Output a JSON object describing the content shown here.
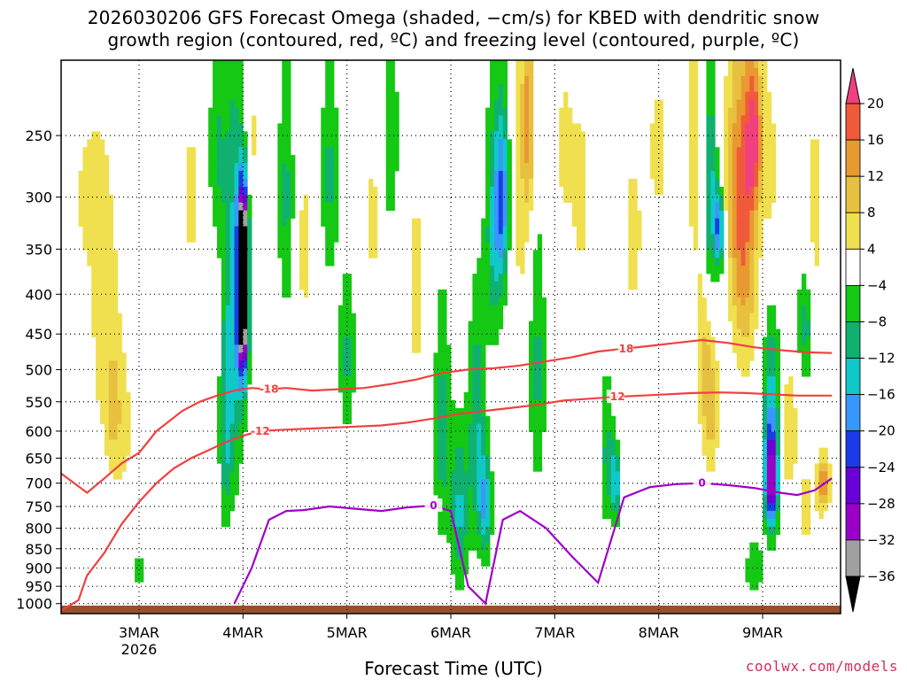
{
  "title_line1": "2026030206 GFS Forecast Omega (shaded, −cm/s) for KBED with dendritic snow",
  "title_line2": "growth region (contoured, red, ºC) and freezing level (contoured, purple, ºC)",
  "xlabel": "Forecast Time (UTC)",
  "credit": "coolwx.com/models",
  "chart_data": {
    "type": "heatmap",
    "title": "2026030206 GFS Forecast Omega (shaded, −cm/s) for KBED with dendritic snow growth region (contoured, red, ºC) and freezing level (contoured, purple, ºC)",
    "xlabel": "Forecast Time (UTC)",
    "ylabel": "",
    "x_ticks": [
      "3MAR",
      "4MAR",
      "5MAR",
      "6MAR",
      "7MAR",
      "8MAR",
      "9MAR"
    ],
    "x_tick_hours": [
      18,
      42,
      66,
      90,
      114,
      138,
      162
    ],
    "x_year_label": "2026",
    "xlim_hours": [
      0,
      180
    ],
    "y_ticks": [
      250,
      300,
      350,
      400,
      450,
      500,
      550,
      600,
      650,
      700,
      750,
      800,
      850,
      900,
      950,
      1000
    ],
    "ylim": [
      200,
      1030
    ],
    "y_scale": "log",
    "grid": true,
    "colorbar": {
      "levels": [
        -36,
        -32,
        -28,
        -24,
        -20,
        -16,
        -12,
        -8,
        -4,
        4,
        8,
        12,
        16,
        20
      ],
      "colors": [
        "#000000",
        "#a0a0a0",
        "#9a00c8",
        "#6a00d8",
        "#1a3ce8",
        "#3a96ff",
        "#10c8c8",
        "#10b070",
        "#14c814",
        "#ffffff",
        "#f0e050",
        "#e8c040",
        "#e89a30",
        "#f05a3a",
        "#f04080"
      ]
    },
    "series": [
      {
        "name": "-18",
        "color": "#f04040",
        "x": [
          0,
          6,
          10,
          14,
          18,
          22,
          28,
          32,
          36,
          40,
          44,
          48,
          52,
          58,
          64,
          70,
          76,
          82,
          88,
          94,
          100,
          106,
          112,
          118,
          124,
          130,
          136,
          142,
          148,
          154,
          160,
          166,
          172,
          178
        ],
        "y": [
          680,
          720,
          690,
          660,
          640,
          600,
          565,
          550,
          540,
          532,
          528,
          530,
          528,
          532,
          530,
          528,
          522,
          515,
          505,
          500,
          498,
          494,
          488,
          482,
          474,
          470,
          466,
          462,
          458,
          462,
          468,
          472,
          475,
          476
        ]
      },
      {
        "name": "-12",
        "color": "#f04040",
        "x": [
          0,
          4,
          6,
          10,
          14,
          18,
          22,
          26,
          30,
          34,
          38,
          42,
          46,
          50,
          56,
          62,
          68,
          74,
          80,
          86,
          92,
          98,
          104,
          110,
          116,
          122,
          128,
          134,
          140,
          146,
          152,
          158,
          164,
          170,
          178
        ],
        "y": [
          1020,
          990,
          920,
          860,
          790,
          740,
          700,
          670,
          650,
          635,
          620,
          608,
          600,
          598,
          596,
          594,
          592,
          590,
          585,
          578,
          570,
          565,
          560,
          555,
          548,
          545,
          542,
          540,
          538,
          536,
          535,
          536,
          538,
          540,
          540
        ]
      },
      {
        "name": "0",
        "color": "#a000c8",
        "x": [
          40,
          44,
          48,
          52,
          56,
          62,
          68,
          74,
          80,
          86,
          90,
          94,
          98,
          102,
          106,
          112,
          118,
          124,
          130,
          136,
          142,
          148,
          154,
          160,
          166,
          170,
          174,
          178
        ],
        "y": [
          1000,
          900,
          780,
          760,
          758,
          750,
          755,
          760,
          752,
          748,
          760,
          950,
          1000,
          780,
          760,
          800,
          870,
          940,
          730,
          708,
          702,
          700,
          704,
          710,
          720,
          725,
          715,
          690
        ]
      }
    ]
  }
}
